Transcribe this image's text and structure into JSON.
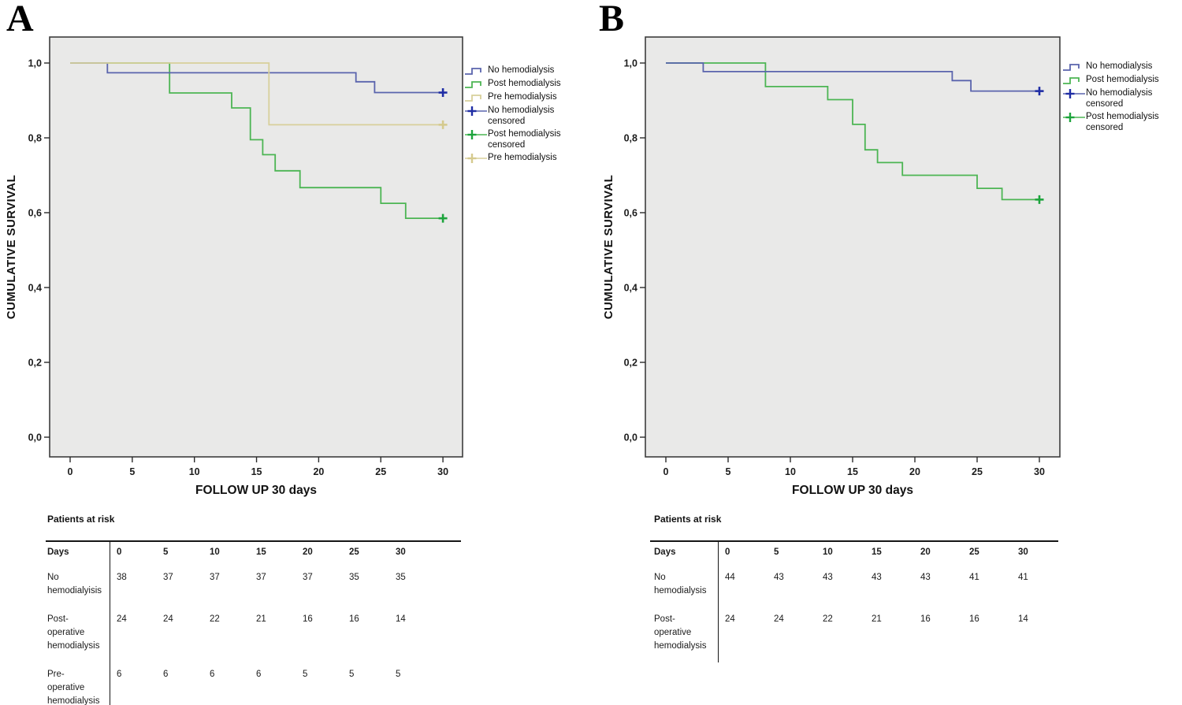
{
  "colors": {
    "plot_bg": "#e9e9e8",
    "plot_border": "#3d3d3d",
    "axis": "#2b2b2b",
    "no_hemodialysis": {
      "line": "#5a64ad",
      "censor": "#1f2da5"
    },
    "post_hemodialysis": {
      "line": "#4cb553",
      "censor": "#1da43c"
    },
    "pre_hemodialysis": {
      "line": "#d8d09b",
      "censor": "#d5ca8e"
    }
  },
  "panels": [
    {
      "label": "A",
      "ylabel": "CUMULATIVE SURVIVAL",
      "xlabel": "FOLLOW UP 30 days",
      "x_ticks": [
        "0",
        "5",
        "10",
        "15",
        "20",
        "25",
        "30"
      ],
      "y_ticks": [
        "0,0",
        "0,2",
        "0,4",
        "0,6",
        "0,8",
        "1,0"
      ],
      "legend": [
        {
          "label": "No hemodialysis",
          "swatch": "step",
          "color_key": "no_hemodialysis"
        },
        {
          "label": "Post hemodialysis",
          "swatch": "step",
          "color_key": "post_hemodialysis"
        },
        {
          "label": "Pre hemodialysis",
          "swatch": "step",
          "color_key": "pre_hemodialysis"
        },
        {
          "label": "No hemodialysis\ncensored",
          "swatch": "cross",
          "color_key": "no_hemodialysis"
        },
        {
          "label": "Post hemodialysis\ncensored",
          "swatch": "cross",
          "color_key": "post_hemodialysis"
        },
        {
          "label": "Pre hemodialysis",
          "swatch": "cross",
          "color_key": "pre_hemodialysis"
        }
      ],
      "risk_table": {
        "title": "Patients at risk",
        "header": [
          "Days",
          "0",
          "5",
          "10",
          "15",
          "20",
          "25",
          "30"
        ],
        "rows": [
          {
            "label": "No\nhemodialyisis",
            "values": [
              "38",
              "37",
              "37",
              "37",
              "37",
              "35",
              "35"
            ]
          },
          {
            "label": "Post-\noperative\nhemodialysis",
            "values": [
              "24",
              "24",
              "22",
              "21",
              "16",
              "16",
              "14"
            ]
          },
          {
            "label": "Pre-\noperative\nhemodialysis",
            "values": [
              "6",
              "6",
              "6",
              "6",
              "5",
              "5",
              "5"
            ]
          }
        ]
      }
    },
    {
      "label": "B",
      "ylabel": "CUMULATIVE SURVIVAL",
      "xlabel": "FOLLOW UP 30 days",
      "x_ticks": [
        "0",
        "5",
        "10",
        "15",
        "20",
        "25",
        "30"
      ],
      "y_ticks": [
        "0,0",
        "0,2",
        "0,4",
        "0,6",
        "0,8",
        "1,0"
      ],
      "legend": [
        {
          "label": "No hemodialysis",
          "swatch": "step",
          "color_key": "no_hemodialysis"
        },
        {
          "label": "Post hemodialysis",
          "swatch": "step",
          "color_key": "post_hemodialysis"
        },
        {
          "label": "No hemodialysis\ncensored",
          "swatch": "cross",
          "color_key": "no_hemodialysis"
        },
        {
          "label": "Post hemodialysis\ncensored",
          "swatch": "cross",
          "color_key": "post_hemodialysis"
        }
      ],
      "risk_table": {
        "title": "Patients at risk",
        "header": [
          "Days",
          "0",
          "5",
          "10",
          "15",
          "20",
          "25",
          "30"
        ],
        "rows": [
          {
            "label": "No\nhemodialysis",
            "values": [
              "44",
              "43",
              "43",
              "43",
              "43",
              "41",
              "41"
            ]
          },
          {
            "label": "Post-\noperative\nhemodialysis",
            "values": [
              "24",
              "24",
              "22",
              "21",
              "16",
              "16",
              "14"
            ]
          }
        ]
      }
    }
  ],
  "chart_data": [
    {
      "type": "line",
      "subtype": "kaplan-meier-step",
      "panel": "A",
      "xlabel": "FOLLOW UP 30 days",
      "ylabel": "CUMULATIVE SURVIVAL",
      "xlim": [
        -1.6,
        31.6
      ],
      "ylim": [
        -0.05,
        1.07
      ],
      "x_tick_values": [
        0,
        5,
        10,
        15,
        20,
        25,
        30
      ],
      "y_tick_values": [
        0.0,
        0.2,
        0.4,
        0.6,
        0.8,
        1.0
      ],
      "grid": false,
      "legend_position": "right",
      "series": [
        {
          "name": "No hemodialysis",
          "color_key": "no_hemodialysis",
          "z": 2,
          "points": [
            [
              0,
              1
            ],
            [
              3,
              1
            ],
            [
              3,
              0.974
            ],
            [
              23,
              0.974
            ],
            [
              23,
              0.95
            ],
            [
              24.5,
              0.95
            ],
            [
              24.5,
              0.921
            ],
            [
              30,
              0.921
            ]
          ]
        },
        {
          "name": "Post hemodialysis",
          "color_key": "post_hemodialysis",
          "z": 1,
          "points": [
            [
              0,
              1
            ],
            [
              8,
              1
            ],
            [
              8,
              0.92
            ],
            [
              13,
              0.92
            ],
            [
              13,
              0.88
            ],
            [
              14.5,
              0.88
            ],
            [
              14.5,
              0.795
            ],
            [
              15.5,
              0.795
            ],
            [
              15.5,
              0.755
            ],
            [
              16.5,
              0.755
            ],
            [
              16.5,
              0.712
            ],
            [
              18.5,
              0.712
            ],
            [
              18.5,
              0.667
            ],
            [
              25,
              0.667
            ],
            [
              25,
              0.625
            ],
            [
              27,
              0.625
            ],
            [
              27,
              0.585
            ],
            [
              30,
              0.585
            ]
          ]
        },
        {
          "name": "Pre hemodialysis",
          "color_key": "pre_hemodialysis",
          "z": 3,
          "points": [
            [
              0,
              1
            ],
            [
              16,
              1
            ],
            [
              16,
              0.835
            ],
            [
              30,
              0.835
            ]
          ]
        }
      ],
      "censored": [
        {
          "series": "No hemodialysis",
          "x": 30,
          "y": 0.921,
          "color_key": "no_hemodialysis"
        },
        {
          "series": "Pre hemodialysis",
          "x": 30,
          "y": 0.835,
          "color_key": "pre_hemodialysis"
        },
        {
          "series": "Post hemodialysis",
          "x": 30,
          "y": 0.585,
          "color_key": "post_hemodialysis"
        }
      ]
    },
    {
      "type": "line",
      "subtype": "kaplan-meier-step",
      "panel": "B",
      "xlabel": "FOLLOW UP 30 days",
      "ylabel": "CUMULATIVE SURVIVAL",
      "xlim": [
        -1.6,
        31.6
      ],
      "ylim": [
        -0.05,
        1.07
      ],
      "x_tick_values": [
        0,
        5,
        10,
        15,
        20,
        25,
        30
      ],
      "y_tick_values": [
        0.0,
        0.2,
        0.4,
        0.6,
        0.8,
        1.0
      ],
      "grid": false,
      "legend_position": "right",
      "series": [
        {
          "name": "No hemodialysis",
          "color_key": "no_hemodialysis",
          "z": 2,
          "points": [
            [
              0,
              1
            ],
            [
              3,
              1
            ],
            [
              3,
              0.977
            ],
            [
              23,
              0.977
            ],
            [
              23,
              0.953
            ],
            [
              24.5,
              0.953
            ],
            [
              24.5,
              0.925
            ],
            [
              30,
              0.925
            ]
          ]
        },
        {
          "name": "Post hemodialysis",
          "color_key": "post_hemodialysis",
          "z": 1,
          "points": [
            [
              0,
              1
            ],
            [
              8,
              1
            ],
            [
              8,
              0.937
            ],
            [
              13,
              0.937
            ],
            [
              13,
              0.902
            ],
            [
              15,
              0.902
            ],
            [
              15,
              0.836
            ],
            [
              16,
              0.836
            ],
            [
              16,
              0.768
            ],
            [
              17,
              0.768
            ],
            [
              17,
              0.734
            ],
            [
              19,
              0.734
            ],
            [
              19,
              0.7
            ],
            [
              25,
              0.7
            ],
            [
              25,
              0.665
            ],
            [
              27,
              0.665
            ],
            [
              27,
              0.635
            ],
            [
              30,
              0.635
            ]
          ]
        }
      ],
      "censored": [
        {
          "series": "No hemodialysis",
          "x": 30,
          "y": 0.925,
          "color_key": "no_hemodialysis"
        },
        {
          "series": "Post hemodialysis",
          "x": 30,
          "y": 0.635,
          "color_key": "post_hemodialysis"
        }
      ]
    }
  ]
}
